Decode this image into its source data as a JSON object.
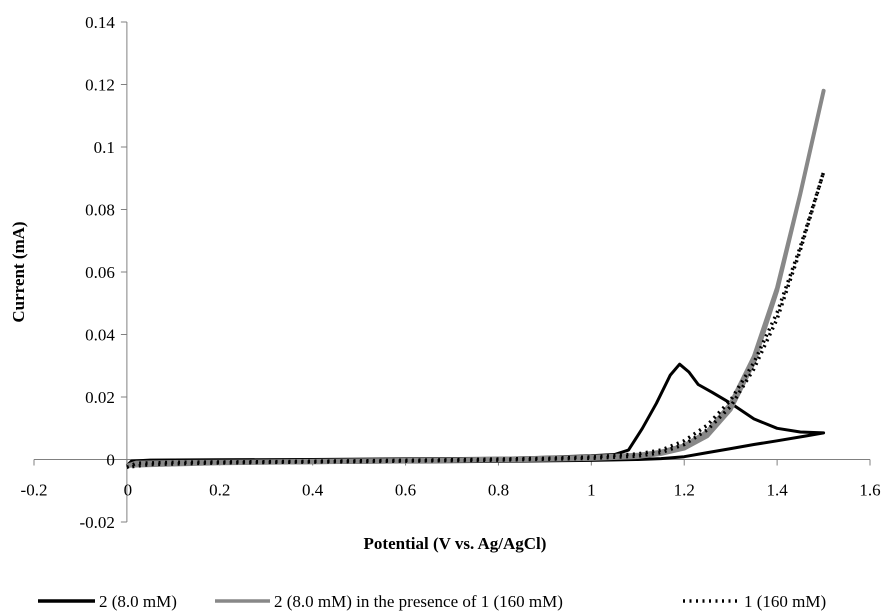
{
  "chart_data": {
    "type": "line",
    "title": "",
    "xlabel": "Potential (V vs. Ag/AgCl)",
    "ylabel": "Current (mA)",
    "xlim": [
      -0.2,
      1.6
    ],
    "ylim": [
      -0.02,
      0.14
    ],
    "x_ticks": [
      -0.2,
      0,
      0.2,
      0.4,
      0.6,
      0.8,
      1,
      1.2,
      1.4,
      1.6
    ],
    "x_tick_labels": [
      "-0.2",
      "0",
      "0.2",
      "0.4",
      "0.6",
      "0.8",
      "1",
      "1.2",
      "1.4",
      "1.6"
    ],
    "y_ticks": [
      -0.02,
      0,
      0.02,
      0.04,
      0.06,
      0.08,
      0.1,
      0.12,
      0.14
    ],
    "y_tick_labels": [
      "-0.02",
      "0",
      "0.02",
      "0.04",
      "0.06",
      "0.08",
      "0.1",
      "0.12",
      "0.14"
    ],
    "grid": false,
    "legend_position": "bottom",
    "series": [
      {
        "name": "2 (8.0 mM)",
        "color": "#000000",
        "style": "solid",
        "points": [
          [
            0,
            -0.002
          ],
          [
            0.01,
            -0.0005
          ],
          [
            0.05,
            -0.0002
          ],
          [
            0.2,
            -0.0001
          ],
          [
            0.4,
            0.0
          ],
          [
            0.6,
            0.0002
          ],
          [
            0.8,
            0.0004
          ],
          [
            0.9,
            0.0007
          ],
          [
            1.0,
            0.0012
          ],
          [
            1.05,
            0.0016
          ],
          [
            1.08,
            0.003
          ],
          [
            1.11,
            0.01
          ],
          [
            1.14,
            0.018
          ],
          [
            1.17,
            0.027
          ],
          [
            1.19,
            0.0305
          ],
          [
            1.21,
            0.028
          ],
          [
            1.23,
            0.024
          ],
          [
            1.26,
            0.0215
          ],
          [
            1.3,
            0.018
          ],
          [
            1.35,
            0.013
          ],
          [
            1.4,
            0.01
          ],
          [
            1.45,
            0.0088
          ],
          [
            1.5,
            0.0085
          ],
          [
            1.46,
            0.0075
          ],
          [
            1.4,
            0.006
          ],
          [
            1.35,
            0.0048
          ],
          [
            1.3,
            0.0035
          ],
          [
            1.25,
            0.0022
          ],
          [
            1.2,
            0.0009
          ],
          [
            1.15,
            0.0003
          ],
          [
            1.1,
            0.0
          ],
          [
            1.0,
            -0.0003
          ],
          [
            0.8,
            -0.0006
          ],
          [
            0.6,
            -0.0008
          ],
          [
            0.4,
            -0.001
          ],
          [
            0.2,
            -0.0012
          ],
          [
            0.05,
            -0.0015
          ],
          [
            0,
            -0.002
          ]
        ]
      },
      {
        "name": "2 (8.0 mM) in the presence of 1 (160 mM)",
        "color": "#888888",
        "style": "solid",
        "points": [
          [
            0,
            -0.002
          ],
          [
            0.02,
            -0.001
          ],
          [
            0.1,
            -0.0008
          ],
          [
            0.3,
            -0.0006
          ],
          [
            0.5,
            -0.0003
          ],
          [
            0.7,
            0.0
          ],
          [
            0.9,
            0.0005
          ],
          [
            1.0,
            0.0009
          ],
          [
            1.1,
            0.0015
          ],
          [
            1.15,
            0.0025
          ],
          [
            1.2,
            0.0045
          ],
          [
            1.25,
            0.009
          ],
          [
            1.3,
            0.018
          ],
          [
            1.35,
            0.033
          ],
          [
            1.4,
            0.055
          ],
          [
            1.45,
            0.085
          ],
          [
            1.5,
            0.118
          ],
          [
            1.45,
            0.085
          ],
          [
            1.4,
            0.054
          ],
          [
            1.35,
            0.031
          ],
          [
            1.3,
            0.016
          ],
          [
            1.25,
            0.0075
          ],
          [
            1.2,
            0.0035
          ],
          [
            1.15,
            0.0018
          ],
          [
            1.1,
            0.0008
          ],
          [
            1.0,
            0.0002
          ],
          [
            0.8,
            -0.0003
          ],
          [
            0.6,
            -0.0006
          ],
          [
            0.4,
            -0.0009
          ],
          [
            0.2,
            -0.0012
          ],
          [
            0.05,
            -0.0018
          ],
          [
            0,
            -0.002
          ]
        ]
      },
      {
        "name": "1 (160 mM)",
        "color": "#000000",
        "style": "dotted",
        "points": [
          [
            0,
            -0.0025
          ],
          [
            0.02,
            -0.0012
          ],
          [
            0.1,
            -0.0009
          ],
          [
            0.3,
            -0.0007
          ],
          [
            0.5,
            -0.0004
          ],
          [
            0.7,
            -0.0001
          ],
          [
            0.9,
            0.0004
          ],
          [
            1.0,
            0.0008
          ],
          [
            1.1,
            0.0018
          ],
          [
            1.15,
            0.003
          ],
          [
            1.2,
            0.006
          ],
          [
            1.25,
            0.011
          ],
          [
            1.3,
            0.019
          ],
          [
            1.35,
            0.031
          ],
          [
            1.4,
            0.047
          ],
          [
            1.45,
            0.068
          ],
          [
            1.5,
            0.092
          ],
          [
            1.45,
            0.067
          ],
          [
            1.4,
            0.045
          ],
          [
            1.35,
            0.029
          ],
          [
            1.3,
            0.017
          ],
          [
            1.25,
            0.0095
          ],
          [
            1.2,
            0.0048
          ],
          [
            1.15,
            0.0022
          ],
          [
            1.1,
            0.0011
          ],
          [
            1.0,
            0.0004
          ],
          [
            0.8,
            -0.0002
          ],
          [
            0.6,
            -0.0005
          ],
          [
            0.4,
            -0.0008
          ],
          [
            0.2,
            -0.0011
          ],
          [
            0.05,
            -0.0016
          ],
          [
            0,
            -0.0025
          ]
        ]
      }
    ]
  }
}
